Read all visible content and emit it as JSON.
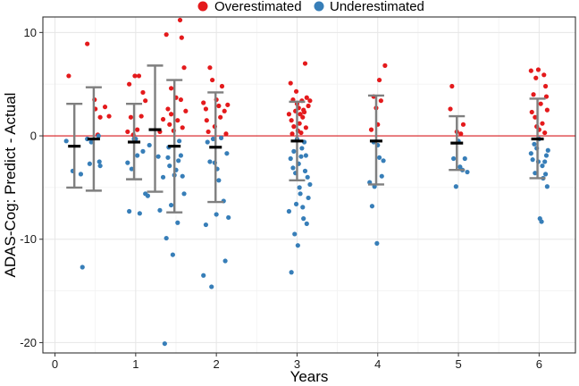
{
  "chart_data": {
    "type": "scatter",
    "title": "",
    "xlabel": "Years",
    "ylabel": "ADAS-Cog: Predict - Actual",
    "xlim": [
      -0.15,
      6.45
    ],
    "ylim": [
      -21,
      11.5
    ],
    "x_ticks": [
      0,
      1,
      2,
      3,
      4,
      5,
      6
    ],
    "y_ticks": [
      -20,
      -10,
      0,
      10
    ],
    "grid": true,
    "reference_line": {
      "y": 0,
      "color": "#d7191c"
    },
    "legend": {
      "position": "top",
      "items": [
        {
          "label": "Overestimated",
          "color": "#e41a1c"
        },
        {
          "label": "Underestimated",
          "color": "#377eb8"
        }
      ]
    },
    "summary": [
      {
        "x": 0.24,
        "mean": -1.0,
        "low": -5.0,
        "high": 3.1
      },
      {
        "x": 0.48,
        "mean": -0.3,
        "low": -5.3,
        "high": 4.7
      },
      {
        "x": 0.98,
        "mean": -0.6,
        "low": -4.2,
        "high": 3.1
      },
      {
        "x": 1.24,
        "mean": 0.6,
        "low": -5.4,
        "high": 6.8
      },
      {
        "x": 1.48,
        "mean": -1.0,
        "low": -7.4,
        "high": 5.4
      },
      {
        "x": 1.99,
        "mean": -1.1,
        "low": -6.4,
        "high": 4.2
      },
      {
        "x": 3.0,
        "mean": -0.5,
        "low": -4.3,
        "high": 3.3
      },
      {
        "x": 3.98,
        "mean": -0.5,
        "low": -4.7,
        "high": 3.9
      },
      {
        "x": 4.98,
        "mean": -0.7,
        "low": -3.3,
        "high": 1.9
      },
      {
        "x": 5.98,
        "mean": -0.3,
        "low": -4.1,
        "high": 3.6
      }
    ],
    "series": [
      {
        "name": "Overestimated",
        "color": "#e41a1c",
        "points": [
          [
            0.17,
            5.8
          ],
          [
            0.4,
            8.9
          ],
          [
            0.49,
            3.5
          ],
          [
            0.56,
            1.8
          ],
          [
            0.62,
            2.8
          ],
          [
            0.53,
            0.1
          ],
          [
            0.5,
            2.6
          ],
          [
            0.67,
            1.9
          ],
          [
            0.9,
            0.4
          ],
          [
            0.94,
            1.8
          ],
          [
            0.99,
            5.8
          ],
          [
            1.04,
            5.8
          ],
          [
            1.07,
            1.9
          ],
          [
            1.02,
            0.6
          ],
          [
            1.09,
            4.2
          ],
          [
            1.12,
            3.4
          ],
          [
            0.97,
            0.1
          ],
          [
            0.92,
            5.0
          ],
          [
            1.38,
            9.8
          ],
          [
            1.55,
            11.2
          ],
          [
            1.57,
            9.5
          ],
          [
            1.6,
            6.6
          ],
          [
            1.44,
            4.6
          ],
          [
            1.5,
            3.7
          ],
          [
            1.56,
            3.5
          ],
          [
            1.4,
            2.6
          ],
          [
            1.34,
            1.6
          ],
          [
            1.62,
            2.4
          ],
          [
            1.42,
            1.1
          ],
          [
            1.52,
            1.5
          ],
          [
            1.3,
            0.4
          ],
          [
            1.47,
            0.5
          ],
          [
            1.58,
            0.8
          ],
          [
            1.44,
            2.1
          ],
          [
            1.84,
            3.2
          ],
          [
            1.87,
            2.6
          ],
          [
            1.92,
            6.6
          ],
          [
            1.95,
            5.4
          ],
          [
            2.0,
            3.5
          ],
          [
            2.03,
            2.9
          ],
          [
            2.07,
            4.8
          ],
          [
            2.1,
            2.4
          ],
          [
            2.14,
            3.0
          ],
          [
            1.9,
            0.4
          ],
          [
            1.98,
            0.9
          ],
          [
            2.12,
            0.2
          ],
          [
            2.05,
            1.8
          ],
          [
            1.88,
            1.5
          ],
          [
            2.92,
            5.1
          ],
          [
            2.95,
            3.5
          ],
          [
            2.98,
            2.4
          ],
          [
            3.0,
            3.1
          ],
          [
            3.02,
            2.7
          ],
          [
            3.04,
            2.1
          ],
          [
            3.06,
            3.4
          ],
          [
            3.08,
            2.5
          ],
          [
            3.1,
            7.0
          ],
          [
            3.12,
            3.7
          ],
          [
            2.9,
            2.1
          ],
          [
            2.93,
            1.5
          ],
          [
            2.96,
            0.9
          ],
          [
            3.01,
            0.5
          ],
          [
            3.03,
            1.2
          ],
          [
            3.07,
            1.8
          ],
          [
            3.11,
            0.8
          ],
          [
            3.14,
            2.9
          ],
          [
            3.16,
            3.4
          ],
          [
            2.94,
            0.2
          ],
          [
            3.05,
            0.3
          ],
          [
            2.99,
            4.3
          ],
          [
            3.09,
            2.3
          ],
          [
            3.95,
            3.8
          ],
          [
            3.98,
            2.7
          ],
          [
            4.02,
            5.4
          ],
          [
            4.04,
            3.4
          ],
          [
            4.09,
            6.8
          ],
          [
            3.92,
            0.6
          ],
          [
            4.0,
            1.1
          ],
          [
            4.9,
            2.6
          ],
          [
            4.92,
            4.8
          ],
          [
            4.98,
            0.4
          ],
          [
            5.03,
            0.2
          ],
          [
            5.06,
            1.1
          ],
          [
            5.9,
            6.3
          ],
          [
            5.93,
            4.0
          ],
          [
            5.96,
            5.6
          ],
          [
            5.99,
            6.4
          ],
          [
            6.02,
            3.1
          ],
          [
            6.06,
            5.9
          ],
          [
            6.08,
            4.8
          ],
          [
            6.09,
            3.8
          ],
          [
            6.1,
            2.5
          ],
          [
            5.91,
            2.3
          ],
          [
            5.95,
            1.8
          ],
          [
            6.0,
            0.6
          ],
          [
            6.04,
            1.2
          ],
          [
            5.97,
            0.9
          ],
          [
            6.07,
            0.3
          ]
        ]
      },
      {
        "name": "Underestimated",
        "color": "#377eb8",
        "points": [
          [
            0.14,
            -0.5
          ],
          [
            0.22,
            -3.4
          ],
          [
            0.34,
            -12.7
          ],
          [
            0.32,
            -3.7
          ],
          [
            0.4,
            -0.3
          ],
          [
            0.45,
            -0.6
          ],
          [
            0.55,
            -2.5
          ],
          [
            0.56,
            -2.9
          ],
          [
            0.43,
            -2.7
          ],
          [
            0.54,
            0.0
          ],
          [
            0.9,
            -2.6
          ],
          [
            0.92,
            -7.3
          ],
          [
            0.95,
            -3.2
          ],
          [
            0.98,
            -0.3
          ],
          [
            1.02,
            -1.9
          ],
          [
            1.05,
            -7.5
          ],
          [
            1.09,
            -1.5
          ],
          [
            1.12,
            -5.6
          ],
          [
            1.15,
            -5.8
          ],
          [
            1.17,
            -0.9
          ],
          [
            1.0,
            -0.3
          ],
          [
            1.28,
            -2.0
          ],
          [
            1.3,
            -7.2
          ],
          [
            1.34,
            -4.0
          ],
          [
            1.36,
            -20.1
          ],
          [
            1.38,
            -9.9
          ],
          [
            1.4,
            -2.1
          ],
          [
            1.42,
            -2.9
          ],
          [
            1.44,
            -6.7
          ],
          [
            1.46,
            -11.5
          ],
          [
            1.48,
            -3.8
          ],
          [
            1.5,
            -3.3
          ],
          [
            1.52,
            -8.4
          ],
          [
            1.54,
            -0.5
          ],
          [
            1.56,
            -1.9
          ],
          [
            1.58,
            -3.9
          ],
          [
            1.6,
            -5.6
          ],
          [
            1.41,
            -1.1
          ],
          [
            1.53,
            -2.4
          ],
          [
            1.84,
            -13.5
          ],
          [
            1.87,
            -8.6
          ],
          [
            1.89,
            -0.6
          ],
          [
            1.92,
            -2.5
          ],
          [
            1.94,
            -14.6
          ],
          [
            1.96,
            -0.3
          ],
          [
            1.98,
            -2.6
          ],
          [
            2.0,
            -7.6
          ],
          [
            2.03,
            -4.3
          ],
          [
            2.06,
            -0.2
          ],
          [
            2.09,
            -6.3
          ],
          [
            2.11,
            -12.1
          ],
          [
            2.13,
            -1.7
          ],
          [
            2.15,
            -7.9
          ],
          [
            2.01,
            -3.2
          ],
          [
            2.9,
            -7.3
          ],
          [
            2.93,
            -13.2
          ],
          [
            2.95,
            -3.1
          ],
          [
            2.97,
            -9.5
          ],
          [
            2.99,
            -6.6
          ],
          [
            3.01,
            -10.6
          ],
          [
            3.02,
            -2.7
          ],
          [
            3.04,
            -5.6
          ],
          [
            3.06,
            -1.2
          ],
          [
            3.08,
            -8.0
          ],
          [
            3.1,
            -3.4
          ],
          [
            3.12,
            -8.5
          ],
          [
            3.14,
            -6.0
          ],
          [
            3.16,
            -4.7
          ],
          [
            2.92,
            -2.2
          ],
          [
            2.96,
            -1.5
          ],
          [
            3.0,
            -0.3
          ],
          [
            3.05,
            -2.0
          ],
          [
            3.09,
            -0.6
          ],
          [
            3.11,
            -1.9
          ],
          [
            3.13,
            -4.0
          ],
          [
            3.03,
            -5.0
          ],
          [
            2.98,
            -3.6
          ],
          [
            3.07,
            -6.9
          ],
          [
            3.9,
            -4.5
          ],
          [
            3.93,
            -6.8
          ],
          [
            3.96,
            -4.9
          ],
          [
            3.99,
            -10.4
          ],
          [
            4.02,
            -2.1
          ],
          [
            4.05,
            -3.9
          ],
          [
            4.07,
            -2.4
          ],
          [
            3.95,
            -0.6
          ],
          [
            4.0,
            -0.9
          ],
          [
            4.94,
            -2.2
          ],
          [
            4.97,
            -4.9
          ],
          [
            5.02,
            -3.0
          ],
          [
            5.05,
            -3.3
          ],
          [
            5.08,
            -2.2
          ],
          [
            5.11,
            -3.5
          ],
          [
            5.0,
            -0.5
          ],
          [
            5.9,
            -1.7
          ],
          [
            5.92,
            -2.3
          ],
          [
            5.95,
            -3.6
          ],
          [
            5.97,
            -1.2
          ],
          [
            5.99,
            -2.5
          ],
          [
            6.01,
            -8.0
          ],
          [
            6.03,
            -8.3
          ],
          [
            6.05,
            -4.1
          ],
          [
            6.07,
            -2.5
          ],
          [
            6.08,
            -3.7
          ],
          [
            6.1,
            -4.9
          ],
          [
            6.11,
            -1.4
          ],
          [
            5.94,
            -0.8
          ],
          [
            6.0,
            -0.3
          ],
          [
            6.04,
            -2.9
          ],
          [
            6.09,
            -1.9
          ]
        ]
      }
    ]
  }
}
